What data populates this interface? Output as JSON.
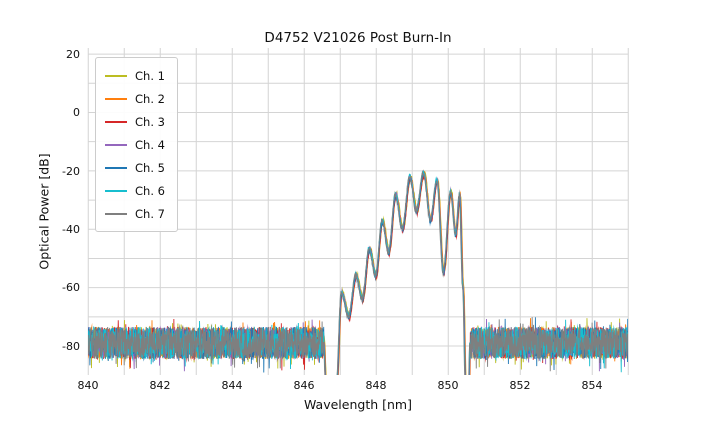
{
  "chart_data": {
    "type": "line",
    "title": "D4752 V21026 Post Burn-In",
    "xlabel": "Wavelength [nm]",
    "ylabel": "Optical Power [dB]",
    "xlim": [
      840,
      855
    ],
    "ylim": [
      -90,
      22
    ],
    "x_ticks": [
      840,
      842,
      844,
      846,
      848,
      850,
      852,
      854
    ],
    "y_ticks": [
      20,
      0,
      -20,
      -40,
      -60,
      -80
    ],
    "x_grid_step_nm": 1,
    "y_grid_step_db": 10,
    "grid": true,
    "grid_color": "#d4d4d4",
    "legend_loc": "upper left",
    "channels": [
      {
        "label": "Ch. 1",
        "color": "#bcbd22"
      },
      {
        "label": "Ch. 2",
        "color": "#ff7f0e"
      },
      {
        "label": "Ch. 3",
        "color": "#d62728"
      },
      {
        "label": "Ch. 4",
        "color": "#9467bd"
      },
      {
        "label": "Ch. 5",
        "color": "#1f77b4"
      },
      {
        "label": "Ch. 6",
        "color": "#17becf"
      },
      {
        "label": "Ch. 7",
        "color": "#7f7f7f"
      }
    ],
    "noise_floor": {
      "mean_db": -79,
      "spread_db": 11,
      "x_range_nm": [
        840,
        855
      ]
    },
    "signal_envelope": {
      "x_range_nm": [
        846.55,
        850.62
      ],
      "peak_power_db": -21,
      "peak_wavelength_nm": 849.33,
      "points": [
        [
          846.55,
          -78
        ],
        [
          846.62,
          -95
        ],
        [
          846.9,
          -95
        ],
        [
          847.05,
          -62
        ],
        [
          847.25,
          -70
        ],
        [
          847.45,
          -56
        ],
        [
          847.63,
          -64
        ],
        [
          847.82,
          -47
        ],
        [
          848.0,
          -56
        ],
        [
          848.18,
          -37.5
        ],
        [
          848.36,
          -48
        ],
        [
          848.55,
          -28.5
        ],
        [
          848.74,
          -40
        ],
        [
          848.95,
          -22.5
        ],
        [
          849.13,
          -34
        ],
        [
          849.33,
          -21
        ],
        [
          849.52,
          -37
        ],
        [
          849.7,
          -23.5
        ],
        [
          849.88,
          -55
        ],
        [
          850.08,
          -27.5
        ],
        [
          850.22,
          -42
        ],
        [
          850.33,
          -28.5
        ],
        [
          850.42,
          -60
        ],
        [
          850.5,
          -95
        ],
        [
          850.58,
          -95
        ],
        [
          850.62,
          -80
        ]
      ]
    }
  }
}
